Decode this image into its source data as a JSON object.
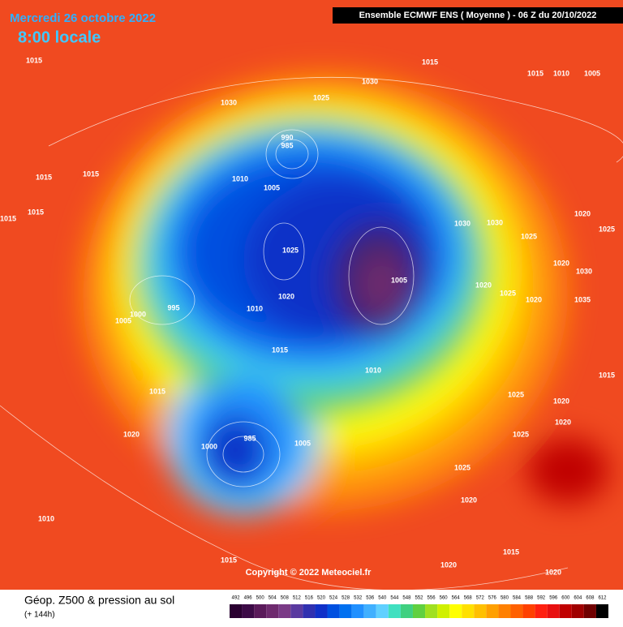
{
  "header": {
    "date": "Mercredi 26 octobre 2022",
    "time": "8:00 locale",
    "model": "Ensemble ECMWF ENS  ( Moyenne )  -  06 Z du 20/10/2022"
  },
  "copyright": "Copyright © 2022 Meteociel.fr",
  "footer": {
    "title": "Géop. Z500 & pression au sol",
    "lead": "(+ 144h)"
  },
  "legend": {
    "ticks": [
      492,
      496,
      500,
      504,
      508,
      512,
      516,
      520,
      524,
      528,
      532,
      536,
      540,
      544,
      548,
      552,
      556,
      560,
      564,
      568,
      572,
      576,
      580,
      584,
      588,
      592,
      596,
      600,
      604,
      608,
      612
    ],
    "colors": [
      "#2a0030",
      "#3c0a46",
      "#5a1a5a",
      "#6e2a6e",
      "#7a3a86",
      "#5a3aa0",
      "#3030b0",
      "#1030c8",
      "#0050e0",
      "#0070f0",
      "#2090ff",
      "#40b0ff",
      "#60d0ff",
      "#40e0c0",
      "#40d080",
      "#60d040",
      "#a0e020",
      "#d0f000",
      "#ffff00",
      "#ffe000",
      "#ffc000",
      "#ffa000",
      "#ff8000",
      "#ff6000",
      "#ff4000",
      "#ff2010",
      "#e81010",
      "#c00000",
      "#a00000",
      "#700000",
      "#000000"
    ]
  },
  "isobar_labels": [
    1015,
    1015,
    1015,
    1010,
    1005,
    1030,
    1030,
    1025,
    990,
    985,
    1015,
    1015,
    1015,
    1015,
    1010,
    1005,
    1025,
    1020,
    1010,
    995,
    1000,
    1005,
    1015,
    1010,
    1005,
    1030,
    1030,
    1025,
    1020,
    1025,
    1020,
    1020,
    1025,
    1020,
    1030,
    1035,
    1015,
    1015,
    1020,
    1000,
    985,
    1005,
    1025,
    1025,
    1020,
    1010,
    1015,
    1015,
    1020,
    1020,
    1020,
    1020,
    1025
  ]
}
